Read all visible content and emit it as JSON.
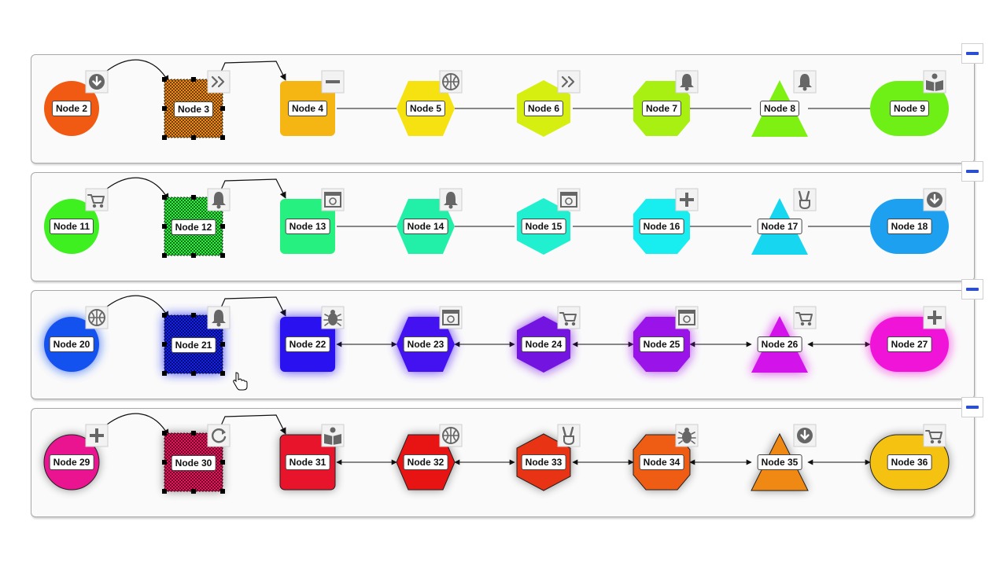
{
  "rows": [
    {
      "nodes": [
        {
          "label": "Node 2",
          "shape": "circle",
          "color": "#f05a13",
          "icon": "download-icon"
        },
        {
          "label": "Node 3",
          "shape": "square",
          "color": "#f08a14",
          "icon": "chevrons-right-icon",
          "selected": true
        },
        {
          "label": "Node 4",
          "shape": "rounded-rect",
          "color": "#f5b512",
          "icon": "minus-icon"
        },
        {
          "label": "Node 5",
          "shape": "hexagon",
          "color": "#f5e210",
          "icon": "basketball-icon"
        },
        {
          "label": "Node 6",
          "shape": "hexagon-v",
          "color": "#d6ef10",
          "icon": "chevrons-right-icon"
        },
        {
          "label": "Node 7",
          "shape": "octagon",
          "color": "#a8ef12",
          "icon": "bell-icon"
        },
        {
          "label": "Node 8",
          "shape": "triangle",
          "color": "#7ef012",
          "icon": "bell-icon"
        },
        {
          "label": "Node 9",
          "shape": "pill",
          "color": "#6ef016",
          "icon": "reader-icon"
        }
      ]
    },
    {
      "nodes": [
        {
          "label": "Node 11",
          "shape": "circle",
          "color": "#3ef020",
          "icon": "cart-icon"
        },
        {
          "label": "Node 12",
          "shape": "square",
          "color": "#30f040",
          "icon": "bell-icon",
          "selected": true
        },
        {
          "label": "Node 13",
          "shape": "rounded-rect",
          "color": "#26f080",
          "icon": "browser-icon"
        },
        {
          "label": "Node 14",
          "shape": "hexagon",
          "color": "#22f0a8",
          "icon": "bell-icon"
        },
        {
          "label": "Node 15",
          "shape": "hexagon-v",
          "color": "#20f0cf",
          "icon": "browser-icon"
        },
        {
          "label": "Node 16",
          "shape": "octagon",
          "color": "#18eef0",
          "icon": "plus-icon"
        },
        {
          "label": "Node 17",
          "shape": "triangle",
          "color": "#16d6f0",
          "icon": "victory-icon"
        },
        {
          "label": "Node 18",
          "shape": "pill",
          "color": "#1ea0f0",
          "icon": "download-icon"
        }
      ]
    },
    {
      "nodes": [
        {
          "label": "Node 20",
          "shape": "circle",
          "color": "#1452f0",
          "icon": "basketball-icon"
        },
        {
          "label": "Node 21",
          "shape": "square",
          "color": "#1420f0",
          "icon": "bell-icon",
          "selected": true
        },
        {
          "label": "Node 22",
          "shape": "rounded-rect",
          "color": "#2a12f0",
          "icon": "bug-icon"
        },
        {
          "label": "Node 23",
          "shape": "hexagon",
          "color": "#4412f0",
          "icon": "browser-icon"
        },
        {
          "label": "Node 24",
          "shape": "hexagon-v",
          "color": "#7414e0",
          "icon": "cart-icon"
        },
        {
          "label": "Node 25",
          "shape": "octagon",
          "color": "#9a14ea",
          "icon": "browser-icon"
        },
        {
          "label": "Node 26",
          "shape": "triangle",
          "color": "#d214ea",
          "icon": "cart-icon"
        },
        {
          "label": "Node 27",
          "shape": "pill",
          "color": "#f014d8",
          "icon": "plus-icon"
        }
      ]
    },
    {
      "nodes": [
        {
          "label": "Node 29",
          "shape": "circle",
          "color": "#ea1490",
          "icon": "plus-icon"
        },
        {
          "label": "Node 30",
          "shape": "square",
          "color": "#ea145c",
          "icon": "refresh-icon",
          "selected": true
        },
        {
          "label": "Node 31",
          "shape": "rounded-rect",
          "color": "#e8142c",
          "icon": "reader-icon"
        },
        {
          "label": "Node 32",
          "shape": "hexagon",
          "color": "#e81414",
          "icon": "basketball-icon"
        },
        {
          "label": "Node 33",
          "shape": "hexagon-v",
          "color": "#e83414",
          "icon": "victory-icon"
        },
        {
          "label": "Node 34",
          "shape": "octagon",
          "color": "#ef5c14",
          "icon": "bug-icon"
        },
        {
          "label": "Node 35",
          "shape": "triangle",
          "color": "#f08814",
          "icon": "download-icon"
        },
        {
          "label": "Node 36",
          "shape": "pill",
          "color": "#f5c212",
          "icon": "cart-icon"
        }
      ]
    }
  ]
}
